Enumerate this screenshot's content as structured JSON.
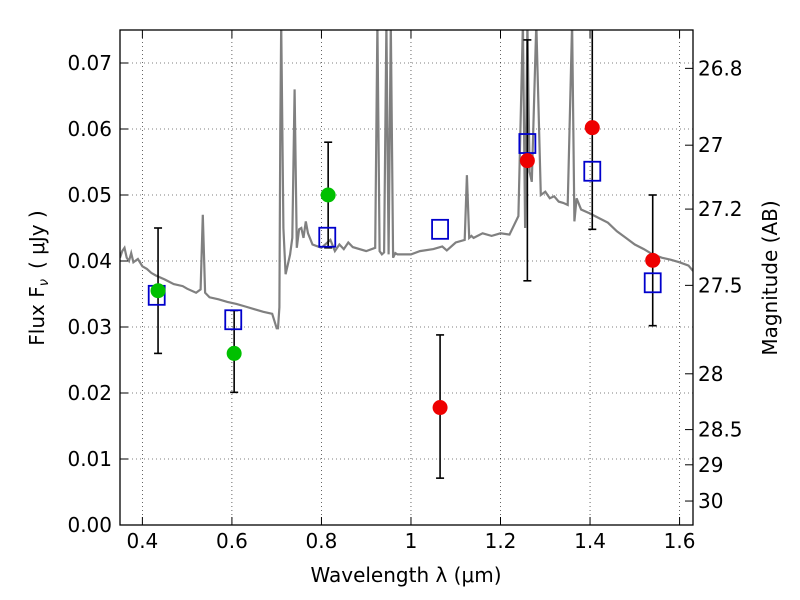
{
  "chart_data": {
    "type": "scatter",
    "xlabel": "Wavelength  λ (μm)",
    "ylabel_left": "Flux  F",
    "ylabel_left_sub": "ν",
    "ylabel_left_unit": "( μJy )",
    "ylabel_right": "Magnitude (AB)",
    "xlim": [
      0.35,
      1.63
    ],
    "ylim": [
      0.0,
      0.075
    ],
    "grid": true,
    "x_ticks": [
      0.4,
      0.6,
      0.8,
      1.0,
      1.2,
      1.4,
      1.6
    ],
    "x_tick_labels": [
      "0.4",
      "0.6",
      "0.8",
      "1",
      "1.2",
      "1.4",
      "1.6"
    ],
    "y_ticks": [
      0.0,
      0.01,
      0.02,
      0.03,
      0.04,
      0.05,
      0.06,
      0.07
    ],
    "y_tick_labels": [
      "0.00",
      "0.01",
      "0.02",
      "0.03",
      "0.04",
      "0.05",
      "0.06",
      "0.07"
    ],
    "right_ticks": [
      {
        "mag": 26.8,
        "label": "26.8"
      },
      {
        "mag": 27.0,
        "label": "27"
      },
      {
        "mag": 27.2,
        "label": "27.2"
      },
      {
        "mag": 27.5,
        "label": "27.5"
      },
      {
        "mag": 28.0,
        "label": "28"
      },
      {
        "mag": 28.5,
        "label": "28.5"
      },
      {
        "mag": 29.0,
        "label": "29"
      },
      {
        "mag": 30.0,
        "label": "30"
      }
    ],
    "observed_green": {
      "color": "#00c000",
      "points": [
        {
          "x": 0.435,
          "y": 0.0355,
          "ylo": 0.026,
          "yhi": 0.045
        },
        {
          "x": 0.605,
          "y": 0.026,
          "ylo": 0.0201,
          "yhi": 0.0325
        },
        {
          "x": 0.815,
          "y": 0.05,
          "ylo": 0.042,
          "yhi": 0.058
        }
      ]
    },
    "observed_red": {
      "color": "#ee0000",
      "points": [
        {
          "x": 1.065,
          "y": 0.0178,
          "ylo": 0.0071,
          "yhi": 0.0288
        },
        {
          "x": 1.26,
          "y": 0.0552,
          "ylo": 0.037,
          "yhi": 0.0735
        },
        {
          "x": 1.405,
          "y": 0.0602,
          "ylo": 0.0448,
          "yhi": 0.0755
        },
        {
          "x": 1.54,
          "y": 0.0401,
          "ylo": 0.0302,
          "yhi": 0.05
        }
      ]
    },
    "model_boxes": {
      "color": "#0000cc",
      "points": [
        {
          "x": 0.432,
          "y": 0.0348
        },
        {
          "x": 0.603,
          "y": 0.0311
        },
        {
          "x": 0.813,
          "y": 0.0436
        },
        {
          "x": 1.065,
          "y": 0.0448
        },
        {
          "x": 1.26,
          "y": 0.0578
        },
        {
          "x": 1.405,
          "y": 0.0536
        },
        {
          "x": 1.54,
          "y": 0.0367
        }
      ]
    },
    "model_spectrum": {
      "color": "#808080",
      "x": [
        0.35,
        0.355,
        0.36,
        0.365,
        0.37,
        0.375,
        0.38,
        0.39,
        0.4,
        0.41,
        0.42,
        0.43,
        0.45,
        0.47,
        0.49,
        0.5,
        0.52,
        0.53,
        0.535,
        0.54,
        0.55,
        0.57,
        0.59,
        0.61,
        0.63,
        0.65,
        0.67,
        0.69,
        0.7,
        0.703,
        0.706,
        0.708,
        0.71,
        0.715,
        0.72,
        0.725,
        0.73,
        0.735,
        0.74,
        0.745,
        0.75,
        0.755,
        0.76,
        0.765,
        0.77,
        0.78,
        0.8,
        0.82,
        0.83,
        0.84,
        0.85,
        0.86,
        0.87,
        0.9,
        0.92,
        0.925,
        0.93,
        0.935,
        0.94,
        0.945,
        0.95,
        0.955,
        0.96,
        0.965,
        0.97,
        1.0,
        1.02,
        1.05,
        1.07,
        1.08,
        1.1,
        1.12,
        1.125,
        1.13,
        1.135,
        1.14,
        1.16,
        1.18,
        1.2,
        1.22,
        1.24,
        1.25,
        1.255,
        1.26,
        1.265,
        1.27,
        1.28,
        1.29,
        1.3,
        1.31,
        1.32,
        1.33,
        1.34,
        1.35,
        1.36,
        1.365,
        1.37,
        1.38,
        1.4,
        1.42,
        1.44,
        1.46,
        1.48,
        1.5,
        1.52,
        1.54,
        1.56,
        1.58,
        1.6,
        1.62,
        1.63
      ],
      "y": [
        0.0405,
        0.0415,
        0.042,
        0.0405,
        0.04,
        0.0412,
        0.0398,
        0.0403,
        0.0392,
        0.0388,
        0.0382,
        0.0378,
        0.0372,
        0.0365,
        0.0362,
        0.0358,
        0.0352,
        0.0357,
        0.047,
        0.0352,
        0.0345,
        0.0342,
        0.0338,
        0.0335,
        0.0331,
        0.0327,
        0.0323,
        0.032,
        0.0298,
        0.0298,
        0.033,
        0.06,
        0.076,
        0.045,
        0.038,
        0.0395,
        0.041,
        0.0435,
        0.066,
        0.042,
        0.0448,
        0.045,
        0.0435,
        0.046,
        0.0442,
        0.0425,
        0.042,
        0.0432,
        0.0415,
        0.0425,
        0.0418,
        0.0428,
        0.0421,
        0.0415,
        0.042,
        0.076,
        0.0415,
        0.041,
        0.0413,
        0.076,
        0.041,
        0.076,
        0.0405,
        0.0412,
        0.041,
        0.041,
        0.0415,
        0.0418,
        0.0422,
        0.0416,
        0.0428,
        0.0432,
        0.053,
        0.0435,
        0.0438,
        0.0435,
        0.0442,
        0.0438,
        0.0442,
        0.044,
        0.0468,
        0.076,
        0.045,
        0.076,
        0.0535,
        0.052,
        0.076,
        0.05,
        0.0505,
        0.0495,
        0.0498,
        0.049,
        0.0488,
        0.0485,
        0.076,
        0.046,
        0.0495,
        0.0478,
        0.0472,
        0.0465,
        0.0458,
        0.0445,
        0.0435,
        0.0425,
        0.0418,
        0.041,
        0.0405,
        0.0402,
        0.0398,
        0.0393,
        0.0385
      ]
    }
  }
}
